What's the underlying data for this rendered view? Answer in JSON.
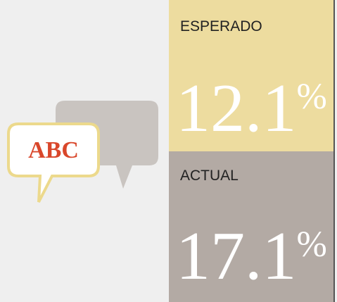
{
  "icon": {
    "text": "ABC"
  },
  "panels": [
    {
      "label": "ESPERADO",
      "value": "12.1",
      "unit": "%"
    },
    {
      "label": "ACTUAL",
      "value": "17.1",
      "unit": "%"
    }
  ]
}
